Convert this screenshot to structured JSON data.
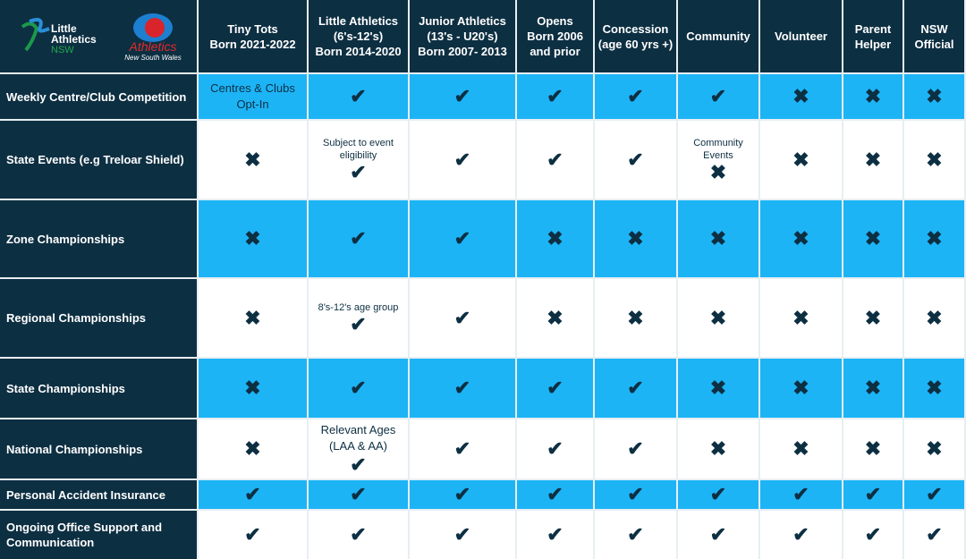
{
  "logos": {
    "little_athletics": "Little Athletics NSW",
    "athletics_nsw": "Athletics New South Wales"
  },
  "headers": [
    "Tiny Tots\nBorn 2021-2022",
    "Little Athletics\n(6's-12's)\nBorn 2014-2020",
    "Junior Athletics\n(13's - U20's)\nBorn 2007- 2013",
    "Opens\nBorn 2006\nand prior",
    "Concession\n(age 60 yrs +)",
    "Community",
    "Volunteer",
    "Parent\nHelper",
    "NSW\nOfficial"
  ],
  "colors": {
    "dark": "#0d2f42",
    "blue": "#1db4f6",
    "white": "#ffffff"
  },
  "icons": {
    "y": "check-icon",
    "n": "cross-icon"
  },
  "rows": [
    {
      "label": "Weekly Centre/Club Competition",
      "bg": "blue",
      "cells": [
        {
          "text": "Centres & Clubs Opt-In",
          "big": true
        },
        {
          "mark": "y"
        },
        {
          "mark": "y"
        },
        {
          "mark": "y"
        },
        {
          "mark": "y"
        },
        {
          "mark": "y"
        },
        {
          "mark": "n"
        },
        {
          "mark": "n"
        },
        {
          "mark": "n"
        }
      ]
    },
    {
      "label": "State Events (e.g Treloar Shield)",
      "bg": "white",
      "cells": [
        {
          "mark": "n"
        },
        {
          "text": "Subject to event eligibility",
          "mark": "y"
        },
        {
          "mark": "y"
        },
        {
          "mark": "y"
        },
        {
          "mark": "y"
        },
        {
          "text": "Community Events",
          "mark": "n"
        },
        {
          "mark": "n"
        },
        {
          "mark": "n"
        },
        {
          "mark": "n"
        }
      ]
    },
    {
      "label": "Zone Championships",
      "bg": "blue",
      "cells": [
        {
          "mark": "n"
        },
        {
          "mark": "y"
        },
        {
          "mark": "y"
        },
        {
          "mark": "n"
        },
        {
          "mark": "n"
        },
        {
          "mark": "n"
        },
        {
          "mark": "n"
        },
        {
          "mark": "n"
        },
        {
          "mark": "n"
        }
      ]
    },
    {
      "label": "Regional Championships",
      "bg": "white",
      "cells": [
        {
          "mark": "n"
        },
        {
          "text": "8's-12's age group",
          "mark": "y"
        },
        {
          "mark": "y"
        },
        {
          "mark": "n"
        },
        {
          "mark": "n"
        },
        {
          "mark": "n"
        },
        {
          "mark": "n"
        },
        {
          "mark": "n"
        },
        {
          "mark": "n"
        }
      ]
    },
    {
      "label": "State Championships",
      "bg": "blue",
      "cells": [
        {
          "mark": "n"
        },
        {
          "mark": "y"
        },
        {
          "mark": "y"
        },
        {
          "mark": "y"
        },
        {
          "mark": "y"
        },
        {
          "mark": "n"
        },
        {
          "mark": "n"
        },
        {
          "mark": "n"
        },
        {
          "mark": "n"
        }
      ]
    },
    {
      "label": "National Championships",
      "bg": "white",
      "cells": [
        {
          "mark": "n"
        },
        {
          "text": "Relevant Ages (LAA & AA)",
          "big": true,
          "mark": "y"
        },
        {
          "mark": "y"
        },
        {
          "mark": "y"
        },
        {
          "mark": "y"
        },
        {
          "mark": "n"
        },
        {
          "mark": "n"
        },
        {
          "mark": "n"
        },
        {
          "mark": "n"
        }
      ]
    },
    {
      "label": "Personal Accident Insurance",
      "bg": "blue",
      "cells": [
        {
          "mark": "y"
        },
        {
          "mark": "y"
        },
        {
          "mark": "y"
        },
        {
          "mark": "y"
        },
        {
          "mark": "y"
        },
        {
          "mark": "y"
        },
        {
          "mark": "y"
        },
        {
          "mark": "y"
        },
        {
          "mark": "y"
        }
      ]
    },
    {
      "label": "Ongoing Office Support and Communication",
      "bg": "white",
      "cells": [
        {
          "mark": "y"
        },
        {
          "mark": "y"
        },
        {
          "mark": "y"
        },
        {
          "mark": "y"
        },
        {
          "mark": "y"
        },
        {
          "mark": "y"
        },
        {
          "mark": "y"
        },
        {
          "mark": "y"
        },
        {
          "mark": "y"
        }
      ]
    }
  ]
}
